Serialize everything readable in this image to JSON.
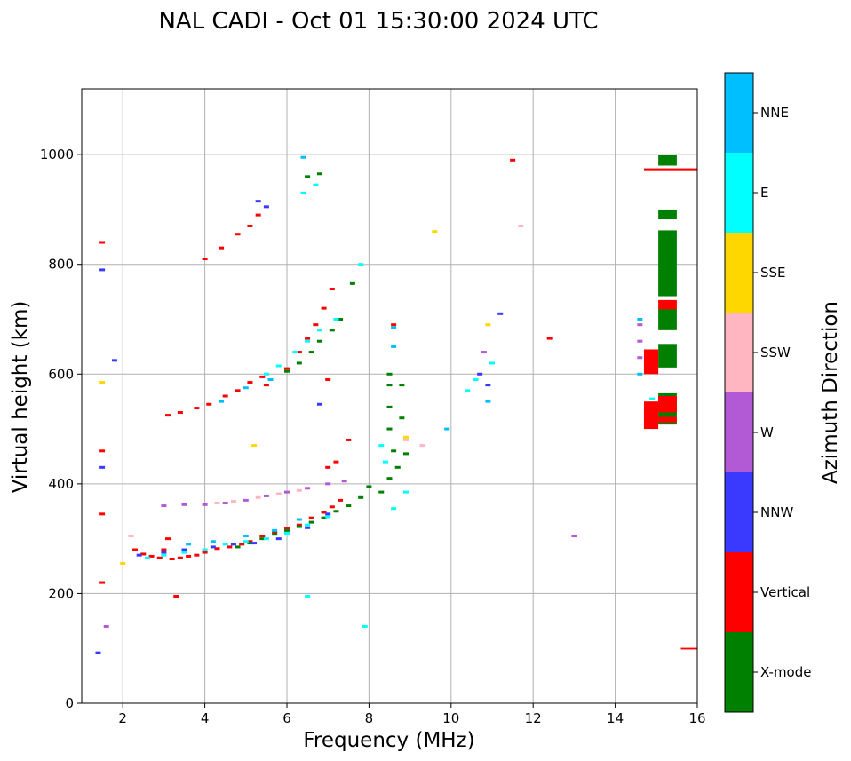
{
  "chart_data": {
    "type": "scatter",
    "title": "NAL CADI - Oct 01 15:30:00 2024 UTC",
    "xlabel": "Frequency (MHz)",
    "ylabel": "Virtual height (km)",
    "xlim": [
      1,
      16
    ],
    "ylim": [
      0,
      1120
    ],
    "xticks": [
      2,
      4,
      6,
      8,
      10,
      12,
      14,
      16
    ],
    "yticks": [
      0,
      200,
      400,
      600,
      800,
      1000
    ],
    "grid": true,
    "colorbar": {
      "label": "Azimuth Direction",
      "categories": [
        {
          "name": "X-mode",
          "color": "#008000"
        },
        {
          "name": "Vertical",
          "color": "#ff0000"
        },
        {
          "name": "NNW",
          "color": "#3a3aff"
        },
        {
          "name": "W",
          "color": "#b259d6"
        },
        {
          "name": "SSW",
          "color": "#ffb6c1"
        },
        {
          "name": "SSE",
          "color": "#ffd700"
        },
        {
          "name": "E",
          "color": "#00ffff"
        },
        {
          "name": "NNE",
          "color": "#00bfff"
        }
      ]
    },
    "series": [
      {
        "name": "Vertical",
        "points": [
          [
            2.3,
            280
          ],
          [
            2.5,
            272
          ],
          [
            2.7,
            268
          ],
          [
            2.9,
            265
          ],
          [
            3.0,
            280
          ],
          [
            3.1,
            300
          ],
          [
            3.2,
            263
          ],
          [
            3.4,
            265
          ],
          [
            3.6,
            268
          ],
          [
            3.8,
            270
          ],
          [
            4.0,
            275
          ],
          [
            4.3,
            282
          ],
          [
            4.6,
            285
          ],
          [
            4.9,
            290
          ],
          [
            5.1,
            295
          ],
          [
            5.4,
            305
          ],
          [
            5.7,
            312
          ],
          [
            6.0,
            318
          ],
          [
            6.3,
            325
          ],
          [
            6.6,
            338
          ],
          [
            6.9,
            348
          ],
          [
            7.1,
            358
          ],
          [
            7.3,
            370
          ],
          [
            7.0,
            430
          ],
          [
            7.2,
            440
          ],
          [
            7.5,
            480
          ],
          [
            3.1,
            525
          ],
          [
            3.4,
            530
          ],
          [
            3.8,
            538
          ],
          [
            4.1,
            545
          ],
          [
            4.5,
            560
          ],
          [
            4.8,
            570
          ],
          [
            5.1,
            585
          ],
          [
            5.4,
            595
          ],
          [
            6.0,
            610
          ],
          [
            6.3,
            640
          ],
          [
            6.5,
            665
          ],
          [
            6.7,
            690
          ],
          [
            6.9,
            720
          ],
          [
            7.1,
            755
          ],
          [
            4.0,
            810
          ],
          [
            4.4,
            830
          ],
          [
            4.8,
            855
          ],
          [
            5.1,
            870
          ],
          [
            5.3,
            890
          ],
          [
            1.5,
            840
          ],
          [
            1.5,
            460
          ],
          [
            1.5,
            345
          ],
          [
            1.5,
            220
          ],
          [
            8.6,
            690
          ],
          [
            12.4,
            665
          ],
          [
            11.5,
            990
          ],
          [
            3.3,
            195
          ],
          [
            5.5,
            580
          ],
          [
            7.0,
            590
          ]
        ]
      },
      {
        "name": "X-mode",
        "points": [
          [
            4.8,
            285
          ],
          [
            5.1,
            292
          ],
          [
            5.4,
            300
          ],
          [
            5.7,
            308
          ],
          [
            6.0,
            315
          ],
          [
            6.3,
            322
          ],
          [
            6.6,
            330
          ],
          [
            6.9,
            338
          ],
          [
            7.2,
            350
          ],
          [
            7.5,
            360
          ],
          [
            7.8,
            375
          ],
          [
            8.0,
            395
          ],
          [
            8.3,
            385
          ],
          [
            8.5,
            410
          ],
          [
            8.7,
            430
          ],
          [
            8.9,
            455
          ],
          [
            6.0,
            605
          ],
          [
            6.3,
            620
          ],
          [
            6.6,
            640
          ],
          [
            6.8,
            660
          ],
          [
            7.1,
            680
          ],
          [
            7.3,
            700
          ],
          [
            7.6,
            765
          ],
          [
            8.5,
            600
          ],
          [
            8.5,
            580
          ],
          [
            8.5,
            540
          ],
          [
            8.5,
            500
          ],
          [
            8.8,
            520
          ],
          [
            8.8,
            580
          ],
          [
            8.6,
            460
          ],
          [
            6.5,
            960
          ],
          [
            6.8,
            965
          ]
        ]
      },
      {
        "name": "NNW",
        "points": [
          [
            2.4,
            270
          ],
          [
            3.0,
            275
          ],
          [
            3.5,
            280
          ],
          [
            4.2,
            285
          ],
          [
            4.7,
            290
          ],
          [
            5.2,
            292
          ],
          [
            5.8,
            300
          ],
          [
            6.5,
            320
          ],
          [
            7.0,
            345
          ],
          [
            5.3,
            915
          ],
          [
            5.5,
            905
          ],
          [
            6.8,
            545
          ],
          [
            1.5,
            430
          ],
          [
            1.5,
            790
          ],
          [
            1.8,
            625
          ],
          [
            1.4,
            92
          ],
          [
            10.7,
            600
          ],
          [
            11.2,
            710
          ],
          [
            10.9,
            580
          ]
        ]
      },
      {
        "name": "W",
        "points": [
          [
            3.0,
            360
          ],
          [
            3.5,
            362
          ],
          [
            4.0,
            362
          ],
          [
            4.5,
            365
          ],
          [
            5.0,
            370
          ],
          [
            5.5,
            378
          ],
          [
            6.0,
            385
          ],
          [
            6.5,
            392
          ],
          [
            7.0,
            400
          ],
          [
            7.4,
            405
          ],
          [
            14.6,
            690
          ],
          [
            14.6,
            660
          ],
          [
            14.6,
            630
          ],
          [
            13.0,
            305
          ],
          [
            10.8,
            640
          ],
          [
            1.6,
            140
          ]
        ]
      },
      {
        "name": "SSW",
        "points": [
          [
            4.3,
            365
          ],
          [
            4.7,
            368
          ],
          [
            5.3,
            375
          ],
          [
            5.8,
            382
          ],
          [
            6.3,
            388
          ],
          [
            8.9,
            480
          ],
          [
            9.3,
            470
          ],
          [
            11.7,
            870
          ],
          [
            2.2,
            305
          ],
          [
            14.8,
            640
          ]
        ]
      },
      {
        "name": "SSE",
        "points": [
          [
            9.6,
            860
          ],
          [
            5.2,
            470
          ],
          [
            1.5,
            585
          ],
          [
            8.9,
            485
          ],
          [
            10.9,
            690
          ],
          [
            2.0,
            255
          ]
        ]
      },
      {
        "name": "E",
        "points": [
          [
            2.6,
            265
          ],
          [
            3.0,
            270
          ],
          [
            3.5,
            275
          ],
          [
            4.0,
            280
          ],
          [
            4.5,
            290
          ],
          [
            5.0,
            295
          ],
          [
            5.5,
            300
          ],
          [
            6.0,
            310
          ],
          [
            6.5,
            325
          ],
          [
            7.0,
            340
          ],
          [
            5.5,
            600
          ],
          [
            5.8,
            615
          ],
          [
            6.2,
            640
          ],
          [
            6.5,
            660
          ],
          [
            6.8,
            680
          ],
          [
            7.2,
            700
          ],
          [
            8.3,
            470
          ],
          [
            8.6,
            355
          ],
          [
            8.9,
            385
          ],
          [
            8.4,
            440
          ],
          [
            6.4,
            930
          ],
          [
            6.7,
            945
          ],
          [
            7.8,
            800
          ],
          [
            7.9,
            140
          ],
          [
            10.6,
            590
          ],
          [
            10.4,
            570
          ],
          [
            11.0,
            620
          ],
          [
            14.9,
            555
          ],
          [
            6.5,
            195
          ]
        ]
      },
      {
        "name": "NNE",
        "points": [
          [
            3.6,
            290
          ],
          [
            4.2,
            295
          ],
          [
            5.0,
            305
          ],
          [
            5.7,
            315
          ],
          [
            6.3,
            335
          ],
          [
            4.4,
            550
          ],
          [
            5.0,
            575
          ],
          [
            5.6,
            590
          ],
          [
            8.6,
            685
          ],
          [
            8.6,
            650
          ],
          [
            10.9,
            550
          ],
          [
            6.4,
            995
          ],
          [
            14.6,
            600
          ],
          [
            14.6,
            700
          ],
          [
            9.9,
            500
          ]
        ]
      }
    ],
    "bars": [
      {
        "name": "X-mode",
        "x": [
          15.05,
          15.5
        ],
        "y": [
          980,
          1000
        ]
      },
      {
        "name": "X-mode",
        "x": [
          15.05,
          15.5
        ],
        "y": [
          882,
          900
        ]
      },
      {
        "name": "X-mode",
        "x": [
          15.05,
          15.5
        ],
        "y": [
          742,
          862
        ]
      },
      {
        "name": "X-mode",
        "x": [
          15.05,
          15.5
        ],
        "y": [
          680,
          720
        ]
      },
      {
        "name": "X-mode",
        "x": [
          15.05,
          15.5
        ],
        "y": [
          612,
          655
        ]
      },
      {
        "name": "X-mode",
        "x": [
          15.05,
          15.5
        ],
        "y": [
          508,
          565
        ]
      },
      {
        "name": "Vertical",
        "x": [
          15.05,
          15.5
        ],
        "y": [
          718,
          735
        ]
      },
      {
        "name": "Vertical",
        "x": [
          15.05,
          15.5
        ],
        "y": [
          530,
          560
        ]
      },
      {
        "name": "Vertical",
        "x": [
          15.05,
          15.5
        ],
        "y": [
          512,
          522
        ]
      },
      {
        "name": "Vertical",
        "x": [
          14.7,
          15.05
        ],
        "y": [
          600,
          645
        ]
      },
      {
        "name": "Vertical",
        "x": [
          14.7,
          15.05
        ],
        "y": [
          500,
          550
        ]
      },
      {
        "name": "Vertical",
        "x": [
          14.7,
          16.0
        ],
        "y": [
          970,
          975
        ]
      },
      {
        "name": "Vertical",
        "x": [
          15.6,
          16.0
        ],
        "y": [
          98,
          101
        ]
      }
    ]
  }
}
